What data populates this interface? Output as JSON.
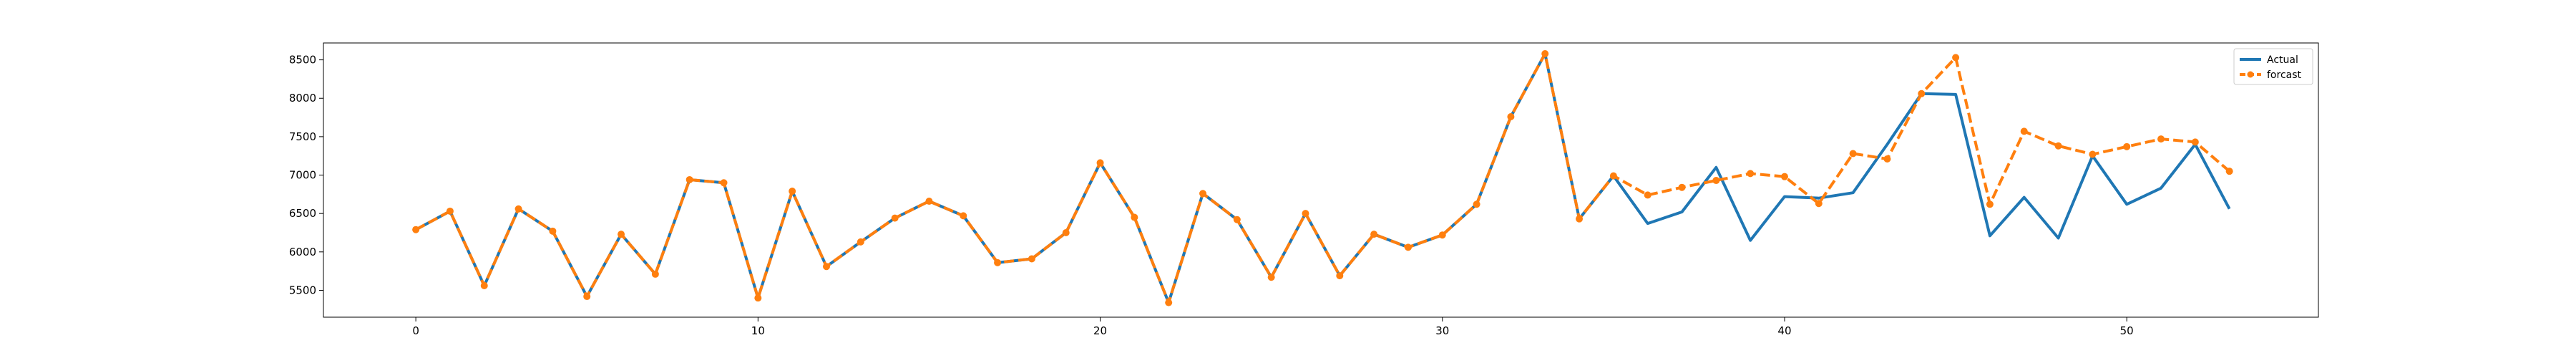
{
  "chart_data": {
    "type": "line",
    "title": "",
    "xlabel": "",
    "ylabel": "",
    "xlim": [
      -2.7,
      55.6
    ],
    "ylim": [
      5150,
      8720
    ],
    "xticks": [
      0,
      10,
      20,
      30,
      40,
      50
    ],
    "yticks": [
      5500,
      6000,
      6500,
      7000,
      7500,
      8000,
      8500
    ],
    "grid": false,
    "legend_position": "top-right",
    "series": [
      {
        "name": "Actual",
        "color": "#1f77b4",
        "style": "solid",
        "marker": "none",
        "x": [
          0,
          1,
          2,
          3,
          4,
          5,
          6,
          7,
          8,
          9,
          10,
          11,
          12,
          13,
          14,
          15,
          16,
          17,
          18,
          19,
          20,
          21,
          22,
          23,
          24,
          25,
          26,
          27,
          28,
          29,
          30,
          31,
          32,
          33,
          34,
          35,
          36,
          37,
          38,
          39,
          40,
          41,
          42,
          43,
          44,
          45,
          46,
          47,
          48,
          49,
          50,
          51,
          52,
          53
        ],
        "values": [
          6290,
          6530,
          5560,
          6560,
          6270,
          5420,
          6230,
          5710,
          6940,
          6900,
          5400,
          6790,
          5810,
          6130,
          6440,
          6660,
          6470,
          5860,
          5910,
          6250,
          7160,
          6450,
          5340,
          6760,
          6420,
          5670,
          6500,
          5690,
          6230,
          6060,
          6220,
          6620,
          7760,
          8580,
          6430,
          6990,
          6370,
          6520,
          7100,
          6150,
          6720,
          6700,
          6770,
          7400,
          8060,
          8050,
          6210,
          6710,
          6180,
          7250,
          6620,
          6830,
          7400,
          6560
        ]
      },
      {
        "name": "forcast",
        "color": "#ff7f0e",
        "style": "dashed",
        "marker": "circle",
        "x": [
          0,
          1,
          2,
          3,
          4,
          5,
          6,
          7,
          8,
          9,
          10,
          11,
          12,
          13,
          14,
          15,
          16,
          17,
          18,
          19,
          20,
          21,
          22,
          23,
          24,
          25,
          26,
          27,
          28,
          29,
          30,
          31,
          32,
          33,
          34,
          35,
          36,
          37,
          38,
          39,
          40,
          41,
          42,
          43,
          44,
          45,
          46,
          47,
          48,
          49,
          50,
          51,
          52,
          53
        ],
        "values": [
          6290,
          6530,
          5560,
          6560,
          6270,
          5420,
          6230,
          5710,
          6940,
          6900,
          5400,
          6790,
          5810,
          6130,
          6440,
          6660,
          6470,
          5860,
          5910,
          6250,
          7160,
          6450,
          5340,
          6760,
          6420,
          5670,
          6500,
          5690,
          6230,
          6060,
          6220,
          6620,
          7760,
          8580,
          6430,
          6990,
          6740,
          6840,
          6930,
          7020,
          6980,
          6630,
          7280,
          7210,
          8060,
          8530,
          6620,
          7570,
          7380,
          7270,
          7370,
          7470,
          7430,
          7050
        ]
      }
    ]
  }
}
